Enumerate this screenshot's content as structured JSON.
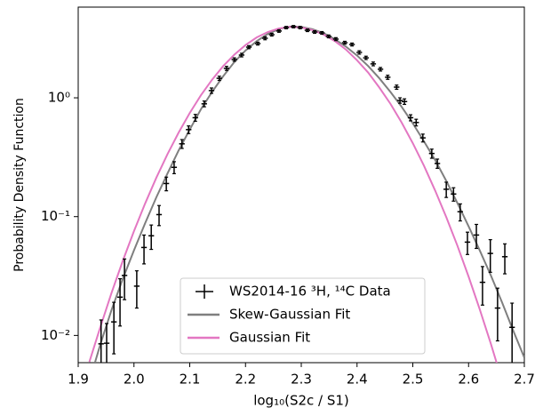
{
  "chart_data": {
    "type": "errorbar",
    "xlabel": "log₁₀(S2c / S1)",
    "ylabel": "Probability Density Function",
    "xlim": [
      1.9,
      2.7
    ],
    "ylim": [
      0.0059,
      5.8
    ],
    "yscale": "log",
    "legend": "lower center",
    "xticks": [
      1.9,
      {
        "value": 2,
        "label": "2.0"
      },
      2.1,
      2.2,
      2.3,
      2.4,
      2.5,
      2.6,
      2.7
    ],
    "yticks": [
      {
        "value": 0.01,
        "label": "10⁻²"
      },
      {
        "value": 0.1,
        "label": "10⁻¹"
      },
      {
        "value": 1,
        "label": "10⁰"
      }
    ],
    "series": [
      {
        "name": "WS2014-16 ³H, ¹⁴C Data",
        "type": "errorbar",
        "color": "#000000",
        "xerr": 0.005,
        "x": [
          1.941,
          1.951,
          1.964,
          1.975,
          1.983,
          2.005,
          2.018,
          2.031,
          2.045,
          2.058,
          2.072,
          2.086,
          2.098,
          2.11,
          2.126,
          2.139,
          2.153,
          2.166,
          2.18,
          2.193,
          2.206,
          2.222,
          2.235,
          2.247,
          2.26,
          2.273,
          2.286,
          2.298,
          2.311,
          2.324,
          2.337,
          2.349,
          2.362,
          2.378,
          2.391,
          2.404,
          2.416,
          2.429,
          2.442,
          2.455,
          2.471,
          2.477,
          2.485,
          2.496,
          2.506,
          2.518,
          2.534,
          2.544,
          2.56,
          2.573,
          2.585,
          2.598,
          2.614,
          2.625,
          2.639,
          2.652,
          2.665,
          2.678
        ],
        "values": [
          0.0085,
          0.0086,
          0.013,
          0.021,
          0.032,
          0.026,
          0.055,
          0.069,
          0.104,
          0.19,
          0.26,
          0.41,
          0.54,
          0.68,
          0.89,
          1.15,
          1.46,
          1.77,
          2.1,
          2.29,
          2.67,
          2.86,
          3.17,
          3.4,
          3.65,
          3.9,
          3.97,
          3.9,
          3.7,
          3.58,
          3.52,
          3.29,
          3.12,
          2.91,
          2.81,
          2.41,
          2.17,
          1.93,
          1.74,
          1.49,
          1.23,
          0.95,
          0.93,
          0.68,
          0.62,
          0.46,
          0.34,
          0.28,
          0.17,
          0.155,
          0.11,
          0.061,
          0.07,
          0.028,
          0.049,
          0.017,
          0.046,
          0.0117
        ],
        "yerr": [
          0.005,
          0.004,
          0.006,
          0.009,
          0.012,
          0.009,
          0.015,
          0.016,
          0.02,
          0.025,
          0.03,
          0.035,
          0.04,
          0.045,
          0.05,
          0.06,
          0.06,
          0.07,
          0.07,
          0.08,
          0.08,
          0.08,
          0.09,
          0.09,
          0.09,
          0.09,
          0.09,
          0.09,
          0.09,
          0.09,
          0.09,
          0.09,
          0.09,
          0.08,
          0.08,
          0.08,
          0.07,
          0.07,
          0.06,
          0.06,
          0.05,
          0.05,
          0.05,
          0.04,
          0.04,
          0.035,
          0.03,
          0.025,
          0.025,
          0.02,
          0.018,
          0.013,
          0.016,
          0.01,
          0.015,
          0.008,
          0.013,
          0.007
        ]
      },
      {
        "name": "Skew-Gaussian Fit",
        "type": "line",
        "color": "#7f7f7f",
        "x": [
          1.93,
          1.94,
          1.96,
          1.98,
          2.0,
          2.02,
          2.04,
          2.06,
          2.08,
          2.1,
          2.12,
          2.14,
          2.16,
          2.18,
          2.2,
          2.22,
          2.24,
          2.26,
          2.28,
          2.3,
          2.32,
          2.34,
          2.36,
          2.38,
          2.4,
          2.42,
          2.44,
          2.46,
          2.48,
          2.5,
          2.52,
          2.54,
          2.56,
          2.58,
          2.6,
          2.62,
          2.64,
          2.66,
          2.68,
          2.7
        ],
        "values": [
          0.0059,
          0.0085,
          0.0165,
          0.03,
          0.052,
          0.088,
          0.145,
          0.23,
          0.36,
          0.54,
          0.8,
          1.12,
          1.52,
          2.0,
          2.5,
          3.0,
          3.45,
          3.8,
          3.98,
          3.95,
          3.78,
          3.5,
          3.12,
          2.7,
          2.27,
          1.85,
          1.46,
          1.12,
          0.84,
          0.61,
          0.43,
          0.3,
          0.2,
          0.13,
          0.083,
          0.052,
          0.032,
          0.019,
          0.011,
          0.0065
        ]
      },
      {
        "name": "Gaussian Fit",
        "type": "line",
        "color": "#e377c2",
        "x": [
          1.92,
          1.94,
          1.96,
          1.98,
          2.0,
          2.02,
          2.04,
          2.06,
          2.08,
          2.1,
          2.12,
          2.14,
          2.16,
          2.18,
          2.2,
          2.22,
          2.24,
          2.26,
          2.28,
          2.3,
          2.32,
          2.34,
          2.36,
          2.38,
          2.4,
          2.42,
          2.44,
          2.46,
          2.48,
          2.5,
          2.52,
          2.54,
          2.56,
          2.58,
          2.6,
          2.62,
          2.64,
          2.66
        ],
        "values": [
          0.00598,
          0.0119,
          0.023,
          0.0425,
          0.0755,
          0.129,
          0.212,
          0.335,
          0.509,
          0.745,
          1.05,
          1.42,
          1.85,
          2.31,
          2.78,
          3.22,
          3.58,
          3.84,
          3.95,
          3.91,
          3.72,
          3.41,
          3.01,
          2.55,
          2.07,
          1.63,
          1.22,
          0.889,
          0.619,
          0.415,
          0.268,
          0.166,
          0.0991,
          0.0569,
          0.0313,
          0.0166,
          0.0085,
          0.00417
        ]
      }
    ]
  }
}
